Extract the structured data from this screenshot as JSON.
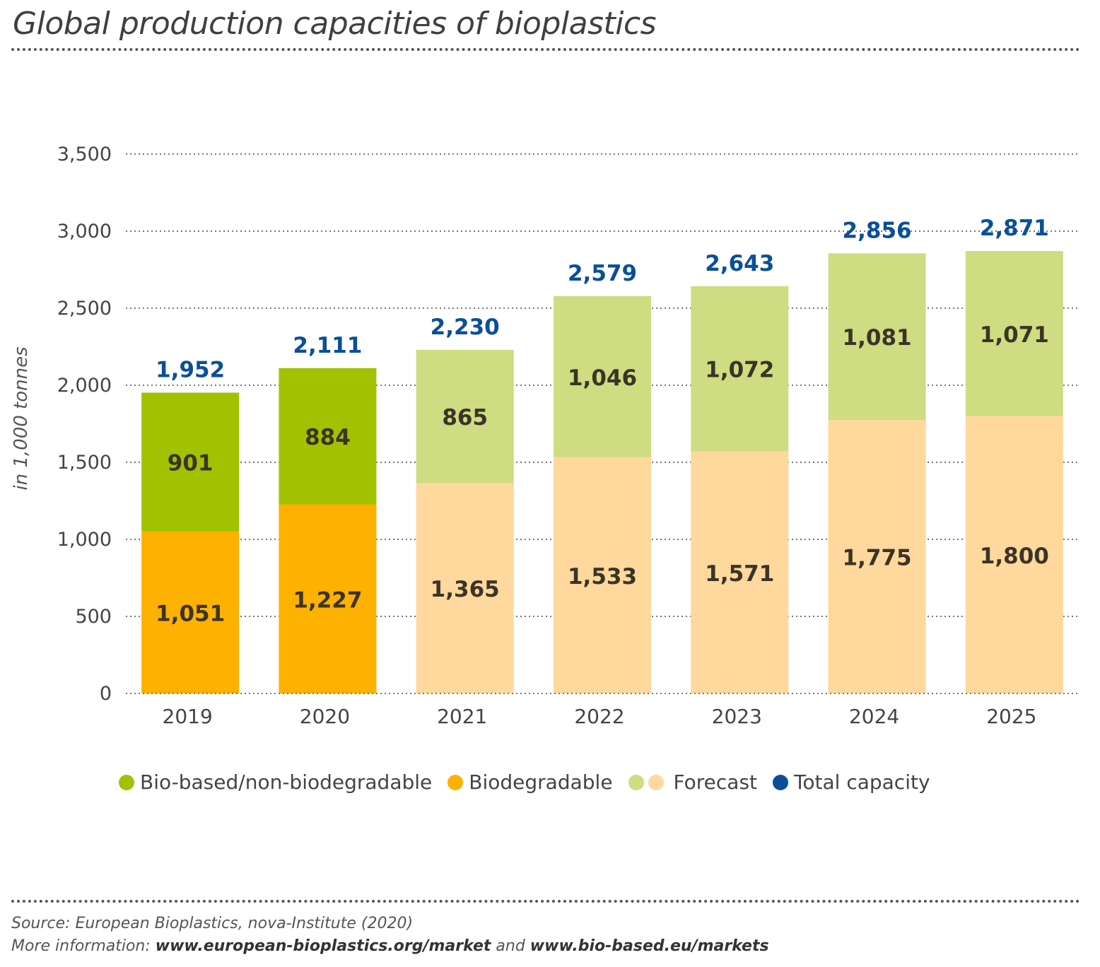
{
  "title": "Global production capacities of bioplastics",
  "chart_data": {
    "type": "bar",
    "stacked": true,
    "title": "Global production capacities of bioplastics",
    "ylabel": "in 1,000 tonnes",
    "xlabel": "",
    "ylim": [
      0,
      3500
    ],
    "yticks": [
      0,
      500,
      1000,
      1500,
      2000,
      2500,
      3000,
      3500
    ],
    "ytick_labels": [
      "0",
      "500",
      "1,000",
      "1,500",
      "2,000",
      "2,500",
      "3,000",
      "3,500"
    ],
    "categories": [
      "2019",
      "2020",
      "2021",
      "2022",
      "2023",
      "2024",
      "2025"
    ],
    "forecast": [
      false,
      false,
      true,
      true,
      true,
      true,
      true
    ],
    "series": [
      {
        "name": "Biodegradable",
        "values": [
          1051,
          1227,
          1365,
          1533,
          1571,
          1775,
          1800
        ],
        "labels": [
          "1,051",
          "1,227",
          "1,365",
          "1,533",
          "1,571",
          "1,775",
          "1,800"
        ]
      },
      {
        "name": "Bio-based/non-biodegradable",
        "values": [
          901,
          884,
          865,
          1046,
          1072,
          1081,
          1071
        ],
        "labels": [
          "901",
          "884",
          "865",
          "1,046",
          "1,072",
          "1,081",
          "1,071"
        ]
      }
    ],
    "totals": [
      1952,
      2111,
      2230,
      2579,
      2643,
      2856,
      2871
    ],
    "total_labels": [
      "1,952",
      "2,111",
      "2,230",
      "2,579",
      "2,643",
      "2,856",
      "2,871"
    ],
    "grid": true
  },
  "legend": {
    "biobased": "Bio-based/non-biodegradable",
    "biodegradable": "Biodegradable",
    "forecast": "Forecast",
    "total": "Total capacity"
  },
  "colors": {
    "biobased": "#a2c101",
    "biodegradable": "#fdb100",
    "biobased_forecast": "#cedc82",
    "biodegradable_forecast": "#fed89c",
    "total": "#0a4f98",
    "grid": "#777777"
  },
  "footer": {
    "source": "Source: European Bioplastics, nova-Institute (2020)",
    "more_prefix": "More information: ",
    "link1": "www.european-bioplastics.org/market",
    "and": " and ",
    "link2": "www.bio-based.eu/markets"
  }
}
